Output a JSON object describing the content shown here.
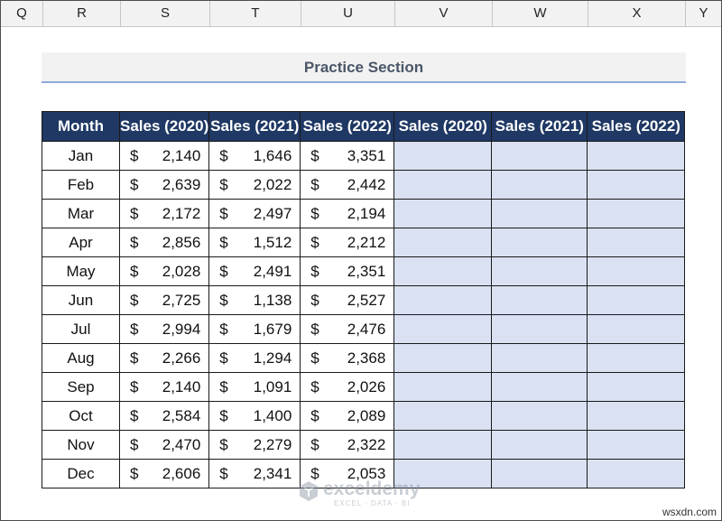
{
  "columns": [
    "Q",
    "R",
    "S",
    "T",
    "U",
    "V",
    "W",
    "X",
    "Y"
  ],
  "title": "Practice Section",
  "table": {
    "headers": [
      "Month",
      "Sales (2020)",
      "Sales (2021)",
      "Sales (2022)",
      "Sales (2020)",
      "Sales (2021)",
      "Sales (2022)"
    ],
    "currency": "$",
    "rows": [
      {
        "month": "Jan",
        "s2020": "2,140",
        "s2021": "1,646",
        "s2022": "3,351"
      },
      {
        "month": "Feb",
        "s2020": "2,639",
        "s2021": "2,022",
        "s2022": "2,442"
      },
      {
        "month": "Mar",
        "s2020": "2,172",
        "s2021": "2,497",
        "s2022": "2,194"
      },
      {
        "month": "Apr",
        "s2020": "2,856",
        "s2021": "1,512",
        "s2022": "2,212"
      },
      {
        "month": "May",
        "s2020": "2,028",
        "s2021": "2,491",
        "s2022": "2,351"
      },
      {
        "month": "Jun",
        "s2020": "2,725",
        "s2021": "1,138",
        "s2022": "2,527"
      },
      {
        "month": "Jul",
        "s2020": "2,994",
        "s2021": "1,679",
        "s2022": "2,476"
      },
      {
        "month": "Aug",
        "s2020": "2,266",
        "s2021": "1,294",
        "s2022": "2,368"
      },
      {
        "month": "Sep",
        "s2020": "2,140",
        "s2021": "1,091",
        "s2022": "2,026"
      },
      {
        "month": "Oct",
        "s2020": "2,584",
        "s2021": "1,400",
        "s2022": "2,089"
      },
      {
        "month": "Nov",
        "s2020": "2,470",
        "s2021": "2,279",
        "s2022": "2,322"
      },
      {
        "month": "Dec",
        "s2020": "2,606",
        "s2021": "2,341",
        "s2022": "2,053"
      }
    ]
  },
  "watermark": {
    "name": "exceldemy",
    "tagline": "EXCEL · DATA · BI"
  },
  "site_watermark": "wsxdn.com",
  "colors": {
    "header_bg": "#1f3864",
    "practice_fill": "#d9e1f2",
    "title_text": "#4a5667",
    "title_rule": "#8eaadb"
  },
  "icons": {
    "logo": "exceldemy-logo-icon"
  }
}
